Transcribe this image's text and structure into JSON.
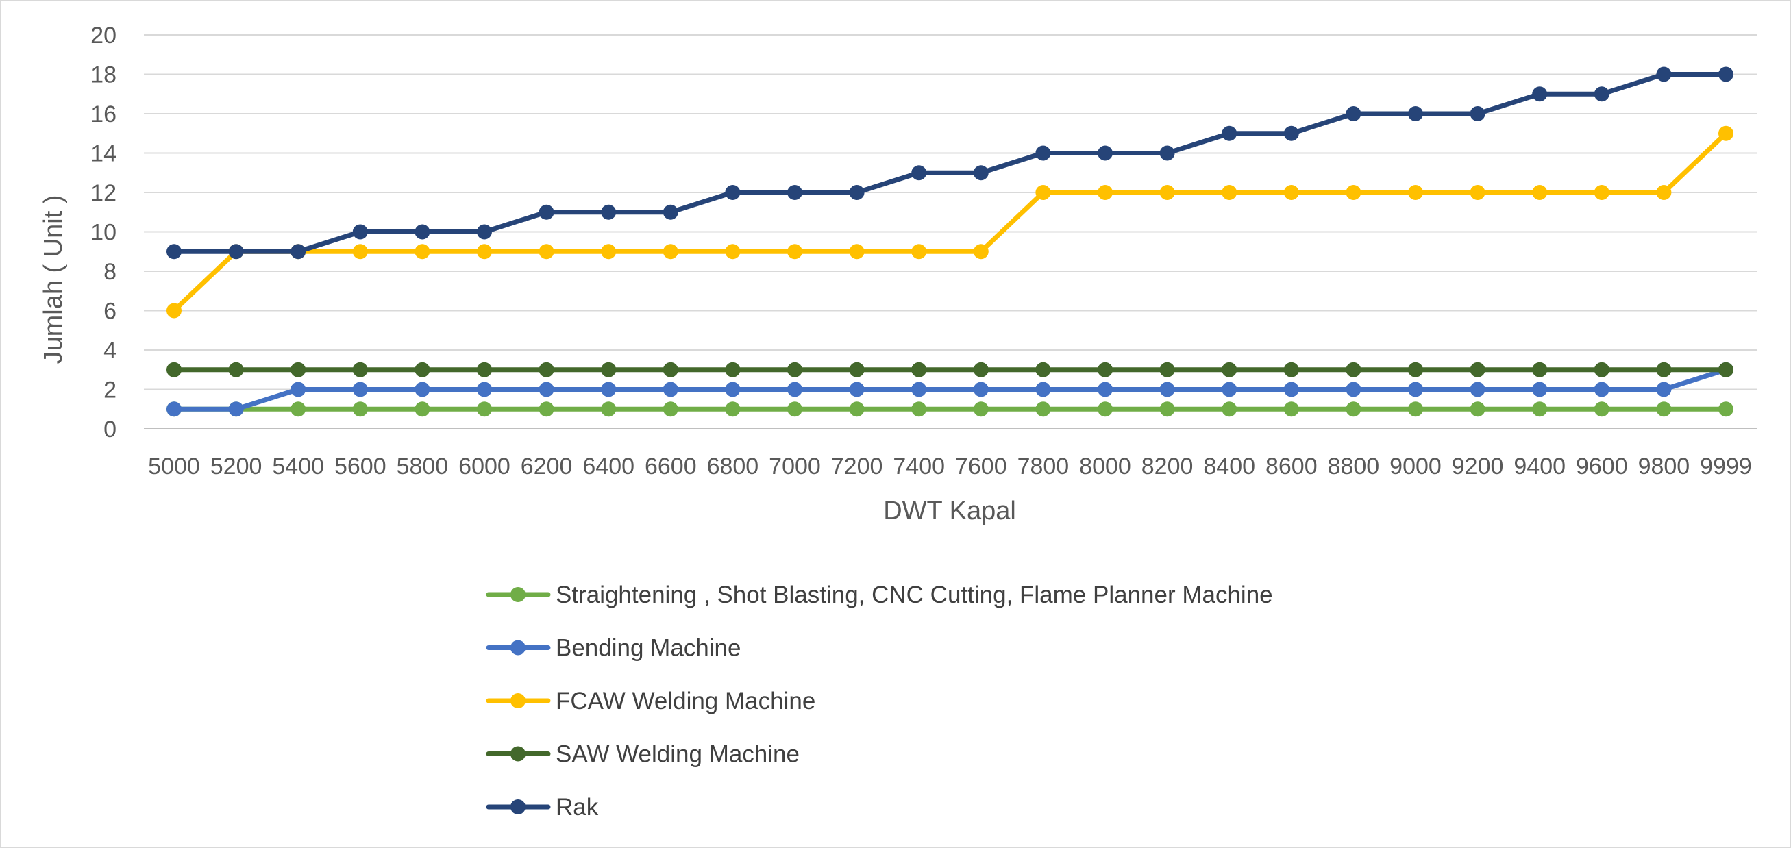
{
  "chart_data": {
    "type": "line",
    "title": "",
    "xlabel": "DWT Kapal",
    "ylabel": "Jumlah ( Unit )",
    "ylim": [
      0,
      20
    ],
    "ytick_step": 2,
    "grid": true,
    "legend_position": "bottom",
    "categories": [
      "5000",
      "5200",
      "5400",
      "5600",
      "5800",
      "6000",
      "6200",
      "6400",
      "6600",
      "6800",
      "7000",
      "7200",
      "7400",
      "7600",
      "7800",
      "8000",
      "8200",
      "8400",
      "8600",
      "8800",
      "9000",
      "9200",
      "9400",
      "9600",
      "9800",
      "9999"
    ],
    "series": [
      {
        "name": "Straightening , Shot Blasting, CNC Cutting, Flame Planner Machine",
        "color": "#70ad47",
        "values": [
          1,
          1,
          1,
          1,
          1,
          1,
          1,
          1,
          1,
          1,
          1,
          1,
          1,
          1,
          1,
          1,
          1,
          1,
          1,
          1,
          1,
          1,
          1,
          1,
          1,
          1
        ]
      },
      {
        "name": "Bending Machine",
        "color": "#4472c4",
        "values": [
          1,
          1,
          2,
          2,
          2,
          2,
          2,
          2,
          2,
          2,
          2,
          2,
          2,
          2,
          2,
          2,
          2,
          2,
          2,
          2,
          2,
          2,
          2,
          2,
          2,
          3
        ]
      },
      {
        "name": "FCAW Welding Machine",
        "color": "#ffc000",
        "values": [
          6,
          9,
          9,
          9,
          9,
          9,
          9,
          9,
          9,
          9,
          9,
          9,
          9,
          9,
          12,
          12,
          12,
          12,
          12,
          12,
          12,
          12,
          12,
          12,
          12,
          15
        ]
      },
      {
        "name": "SAW Welding Machine",
        "color": "#43682b",
        "values": [
          3,
          3,
          3,
          3,
          3,
          3,
          3,
          3,
          3,
          3,
          3,
          3,
          3,
          3,
          3,
          3,
          3,
          3,
          3,
          3,
          3,
          3,
          3,
          3,
          3,
          3
        ]
      },
      {
        "name": "Rak",
        "color": "#264478",
        "values": [
          9,
          9,
          9,
          10,
          10,
          10,
          11,
          11,
          11,
          12,
          12,
          12,
          13,
          13,
          14,
          14,
          14,
          15,
          15,
          16,
          16,
          16,
          17,
          17,
          18,
          18
        ]
      }
    ]
  }
}
